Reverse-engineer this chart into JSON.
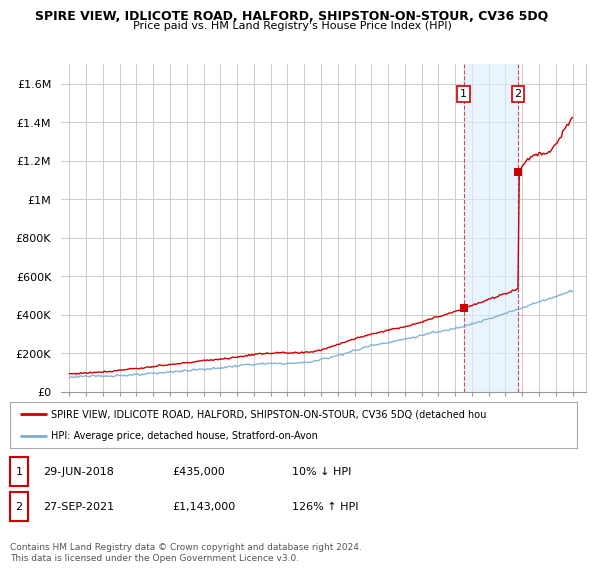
{
  "title_line1": "SPIRE VIEW, IDLICOTE ROAD, HALFORD, SHIPSTON-ON-STOUR, CV36 5DQ",
  "title_line2": "Price paid vs. HM Land Registry's House Price Index (HPI)",
  "ylim": [
    0,
    1700000
  ],
  "yticks": [
    0,
    200000,
    400000,
    600000,
    800000,
    1000000,
    1200000,
    1400000,
    1600000
  ],
  "ytick_labels": [
    "£0",
    "£200K",
    "£400K",
    "£600K",
    "£800K",
    "£1M",
    "£1.2M",
    "£1.4M",
    "£1.6M"
  ],
  "hpi_color": "#7aadd4",
  "price_color": "#cc0000",
  "marker1_year": 2018.5,
  "marker1_price": 435000,
  "marker1_label": "1",
  "marker2_year": 2021.75,
  "marker2_price": 1143000,
  "marker2_label": "2",
  "legend_line1": "SPIRE VIEW, IDLICOTE ROAD, HALFORD, SHIPSTON-ON-STOUR, CV36 5DQ (detached hou",
  "legend_line2": "HPI: Average price, detached house, Stratford-on-Avon",
  "table_row1": [
    "1",
    "29-JUN-2018",
    "£435,000",
    "10% ↓ HPI"
  ],
  "table_row2": [
    "2",
    "27-SEP-2021",
    "£1,143,000",
    "126% ↑ HPI"
  ],
  "footnote": "Contains HM Land Registry data © Crown copyright and database right 2024.\nThis data is licensed under the Open Government Licence v3.0.",
  "bg_color": "#ffffff",
  "grid_color": "#cccccc",
  "shade_color": "#ddeeff"
}
